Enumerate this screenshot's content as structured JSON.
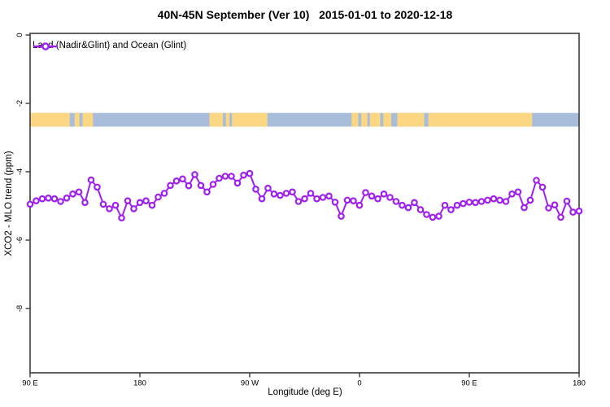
{
  "title": "40N-45N September (Ver 10)   2015-01-01 to 2020-12-18",
  "legend": {
    "label": "Land (Nadir&Glint) and Ocean (Glint)",
    "marker": "open-circle-on-line"
  },
  "axes": {
    "x_label": "Longitude (deg E)",
    "y_label": "XCO2 - MLO trend (ppm)"
  },
  "colors": {
    "series": "#A020F0",
    "marker_fill": "#ffffff",
    "land": "#FBD784",
    "ocean": "#A7BDD9",
    "axis": "#3c3c3c",
    "text": "#000000"
  },
  "chart_data": {
    "type": "line",
    "title": "40N-45N September (Ver 10)   2015-01-01 to 2020-12-18",
    "xlabel": "Longitude (deg E)",
    "ylabel": "XCO2 - MLO trend (ppm)",
    "x_axis_span_deg": [
      90,
      540
    ],
    "x_ticks": [
      {
        "pos": 90,
        "label": "90 E"
      },
      {
        "pos": 180,
        "label": "180"
      },
      {
        "pos": 270,
        "label": "90 W"
      },
      {
        "pos": 360,
        "label": "0"
      },
      {
        "pos": 450,
        "label": "90 E"
      },
      {
        "pos": 540,
        "label": "180"
      }
    ],
    "y_ticks": [
      {
        "val": 0,
        "label": "0"
      },
      {
        "val": -2,
        "label": "-2"
      },
      {
        "val": -4,
        "label": "-4"
      },
      {
        "val": -6,
        "label": "-6"
      },
      {
        "val": -8,
        "label": "-8"
      }
    ],
    "ylim": [
      -9.9,
      0.05
    ],
    "grid": false,
    "legend_position": "top-left-inside",
    "series": [
      {
        "name": "Land (Nadir&Glint) and Ocean (Glint)",
        "color": "#A020F0",
        "marker": "open-circle",
        "x_start_deg": 90,
        "x_step_deg": 5,
        "values": [
          -4.95,
          -4.85,
          -4.79,
          -4.77,
          -4.79,
          -4.87,
          -4.77,
          -4.65,
          -4.59,
          -4.9,
          -4.24,
          -4.45,
          -4.95,
          -5.08,
          -4.98,
          -5.35,
          -4.85,
          -5.08,
          -4.9,
          -4.85,
          -4.98,
          -4.74,
          -4.63,
          -4.4,
          -4.27,
          -4.21,
          -4.41,
          -4.08,
          -4.4,
          -4.59,
          -4.37,
          -4.19,
          -4.13,
          -4.13,
          -4.33,
          -4.1,
          -4.05,
          -4.51,
          -4.79,
          -4.48,
          -4.65,
          -4.69,
          -4.63,
          -4.59,
          -4.87,
          -4.79,
          -4.63,
          -4.79,
          -4.75,
          -4.71,
          -4.89,
          -5.3,
          -4.83,
          -4.85,
          -4.98,
          -4.61,
          -4.71,
          -4.79,
          -4.65,
          -4.75,
          -4.87,
          -4.98,
          -5.05,
          -4.9,
          -5.11,
          -5.25,
          -5.33,
          -5.3,
          -4.98,
          -5.11,
          -4.98,
          -4.93,
          -4.89,
          -4.9,
          -4.87,
          -4.83,
          -4.79,
          -4.83,
          -4.87,
          -4.65,
          -4.59,
          -5.05,
          -4.83,
          -4.25,
          -4.45,
          -5.06,
          -4.97,
          -5.33,
          -4.86,
          -5.18,
          -5.15
        ]
      }
    ],
    "map_band": {
      "description": "land/ocean strip for 40N-45N latitude band",
      "y_range": [
        -2.28,
        -2.68
      ],
      "land_color": "#FBD784",
      "ocean_color": "#A7BDD9",
      "land_segments_deg": [
        [
          90,
          122.5
        ],
        [
          126.5,
          130.5
        ],
        [
          133,
          141.5
        ],
        [
          237,
          248
        ],
        [
          250.5,
          253.5
        ],
        [
          255.5,
          284.5
        ],
        [
          353.5,
          359
        ],
        [
          361.5,
          366.5
        ],
        [
          368.5,
          377
        ],
        [
          379.5,
          386
        ],
        [
          391,
          413
        ],
        [
          416.5,
          501.5
        ]
      ]
    }
  }
}
